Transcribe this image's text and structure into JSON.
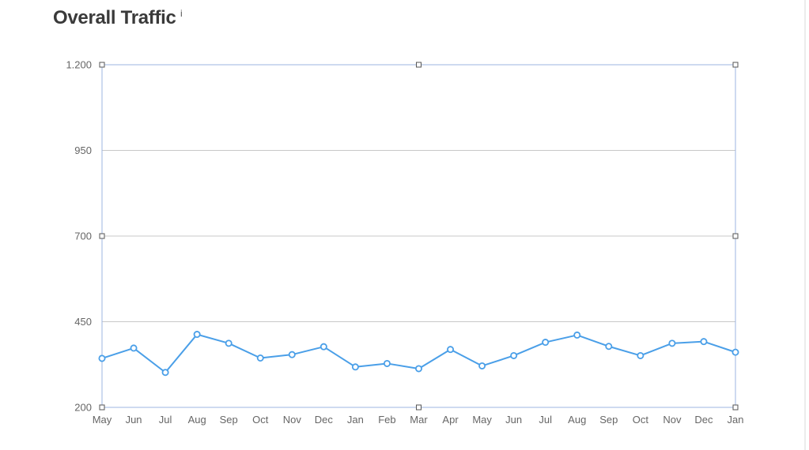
{
  "title": "Overall Traffic",
  "info_icon": "i",
  "chart_data": {
    "type": "line",
    "title": "Overall Traffic",
    "xlabel": "",
    "ylabel": "",
    "categories": [
      "May",
      "Jun",
      "Jul",
      "Aug",
      "Sep",
      "Oct",
      "Nov",
      "Dec",
      "Jan",
      "Feb",
      "Mar",
      "Apr",
      "May",
      "Jun",
      "Jul",
      "Aug",
      "Sep",
      "Oct",
      "Nov",
      "Dec",
      "Jan"
    ],
    "series": [
      {
        "values": [
          343,
          373,
          302,
          413,
          387,
          344,
          354,
          377,
          318,
          328,
          313,
          369,
          321,
          351,
          390,
          411,
          378,
          351,
          387,
          392,
          361
        ]
      }
    ],
    "ylim": [
      200,
      1200
    ],
    "yticks": [
      200,
      450,
      700,
      950,
      1200
    ],
    "ytick_labels": [
      "200",
      "450",
      "700",
      "950",
      "1.200"
    ],
    "grid": true,
    "legend": "none",
    "colors": {
      "line": "#4a9fe8",
      "grid": "#c8c8c8",
      "axis": "#9db4e0",
      "handle": "#555555"
    }
  }
}
